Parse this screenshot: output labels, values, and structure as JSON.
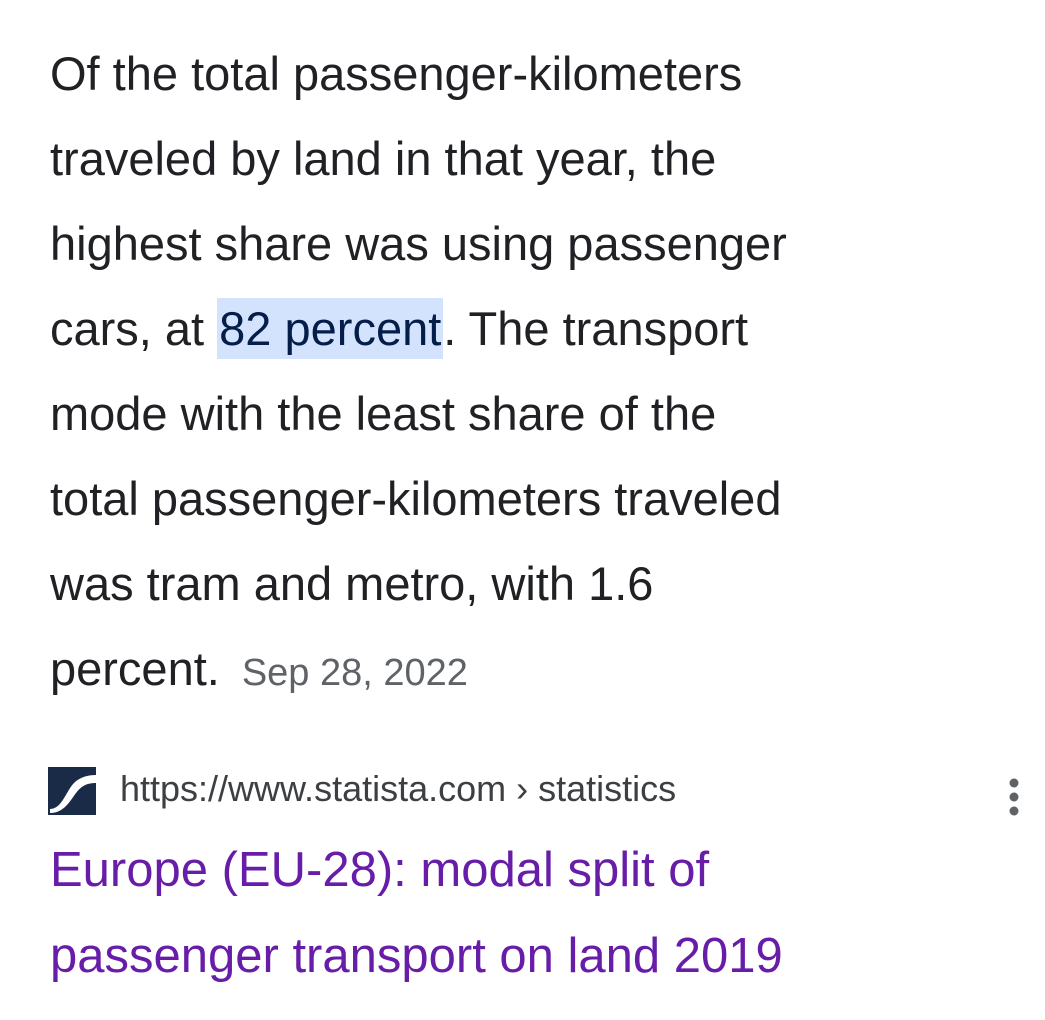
{
  "snippet": {
    "lines": [
      "Of the total passenger-kilometers",
      "traveled by land in that year, the",
      "highest share was using passenger",
      {
        "before": "cars, at ",
        "highlight": "82 percent",
        "after": ". The transport"
      },
      "mode with the least share of the",
      "total passenger-kilometers traveled",
      "was tram and metro, with 1.6",
      "percent."
    ],
    "date": "Sep 28, 2022"
  },
  "result": {
    "url": "https://www.statista.com › statistics",
    "title_lines": [
      "Europe (EU-28): modal split of",
      "passenger transport on land 2019"
    ]
  }
}
